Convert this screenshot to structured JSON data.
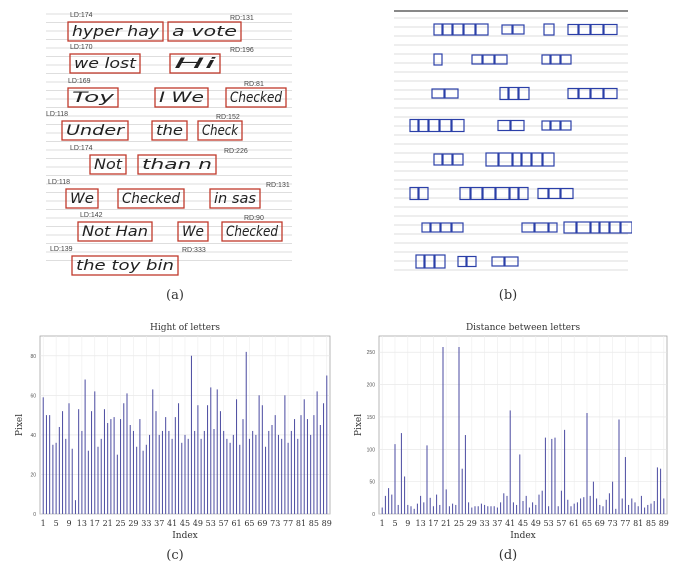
{
  "panels": {
    "a": {
      "caption": "(a)",
      "lines": [
        {
          "ld": "LD:174",
          "rd": "RD:131",
          "words": [
            "hyper hay",
            "a vote"
          ]
        },
        {
          "ld": "LD:170",
          "rd": "RD:196",
          "words": [
            "we lost",
            "Hi"
          ]
        },
        {
          "ld": "LD:169",
          "rd": "RD:81",
          "words": [
            "Toy",
            "I We",
            "Checked"
          ]
        },
        {
          "ld": "LD:118",
          "rd": "RD:152",
          "words": [
            "Under",
            "the",
            "Check"
          ]
        },
        {
          "ld": "LD:174",
          "rd": "RD:226",
          "words": [
            "Not",
            "than n"
          ]
        },
        {
          "ld": "LD:118",
          "rd": "RD:131",
          "words": [
            "We",
            "Checked",
            "in sas"
          ]
        },
        {
          "ld": "LD:142",
          "rd": "RD:90",
          "words": [
            "Not Han",
            "We",
            "Checked"
          ]
        },
        {
          "ld": "LD:139",
          "rd": "RD:333",
          "words": [
            "the toy bin"
          ]
        }
      ]
    },
    "b": {
      "caption": "(b)"
    },
    "c": {
      "caption": "(c)"
    },
    "d": {
      "caption": "(d)"
    }
  },
  "chart_data": [
    {
      "type": "bar",
      "title": "Hight of letters",
      "xlabel": "Index",
      "ylabel": "Pixel",
      "ylim": [
        0,
        90
      ],
      "yticks": [
        0,
        20,
        40,
        60,
        80
      ],
      "xticks": [
        "1",
        "5",
        "9",
        "13",
        "17",
        "21",
        "25",
        "29",
        "33",
        "37",
        "41",
        "45",
        "49",
        "53",
        "57",
        "61",
        "65",
        "69",
        "73",
        "77",
        "81",
        "85",
        "89"
      ],
      "grid": true,
      "color": "#4a4aa0",
      "x_start": 1,
      "values": [
        59,
        50,
        50,
        35,
        36,
        44,
        52,
        38,
        56,
        33,
        7,
        53,
        42,
        68,
        32,
        52,
        62,
        34,
        38,
        53,
        46,
        48,
        49,
        30,
        48,
        56,
        61,
        45,
        42,
        34,
        48,
        32,
        35,
        40,
        63,
        52,
        40,
        42,
        49,
        42,
        38,
        49,
        56,
        36,
        40,
        38,
        80,
        42,
        55,
        38,
        42,
        55,
        64,
        43,
        63,
        52,
        42,
        38,
        36,
        40,
        58,
        35,
        48,
        82,
        38,
        42,
        40,
        60,
        55,
        34,
        42,
        45,
        50,
        40,
        38,
        60,
        36,
        42,
        48,
        38,
        50,
        58,
        48,
        40,
        50,
        62,
        45,
        56,
        70
      ]
    },
    {
      "type": "bar",
      "title": "Distance between letters",
      "xlabel": "Index",
      "ylabel": "Pixel",
      "ylim": [
        0,
        275
      ],
      "yticks": [
        0,
        50,
        100,
        150,
        200,
        250
      ],
      "xticks": [
        "1",
        "5",
        "9",
        "13",
        "17",
        "21",
        "25",
        "29",
        "33",
        "37",
        "41",
        "45",
        "49",
        "53",
        "57",
        "61",
        "65",
        "69",
        "73",
        "77",
        "81",
        "85",
        "89"
      ],
      "grid": true,
      "color": "#4a4aa0",
      "x_start": 1,
      "values": [
        10,
        28,
        40,
        30,
        108,
        14,
        125,
        58,
        14,
        12,
        8,
        16,
        28,
        18,
        106,
        25,
        12,
        30,
        14,
        258,
        38,
        12,
        16,
        14,
        258,
        70,
        122,
        18,
        10,
        12,
        12,
        16,
        14,
        12,
        12,
        12,
        10,
        18,
        32,
        28,
        160,
        18,
        14,
        92,
        20,
        28,
        10,
        18,
        14,
        30,
        36,
        118,
        12,
        116,
        118,
        12,
        36,
        130,
        22,
        12,
        16,
        18,
        24,
        26,
        156,
        28,
        50,
        24,
        14,
        12,
        22,
        32,
        50,
        8,
        146,
        24,
        88,
        14,
        24,
        18,
        12,
        28,
        10,
        14,
        16,
        20,
        72,
        70,
        24
      ]
    }
  ]
}
